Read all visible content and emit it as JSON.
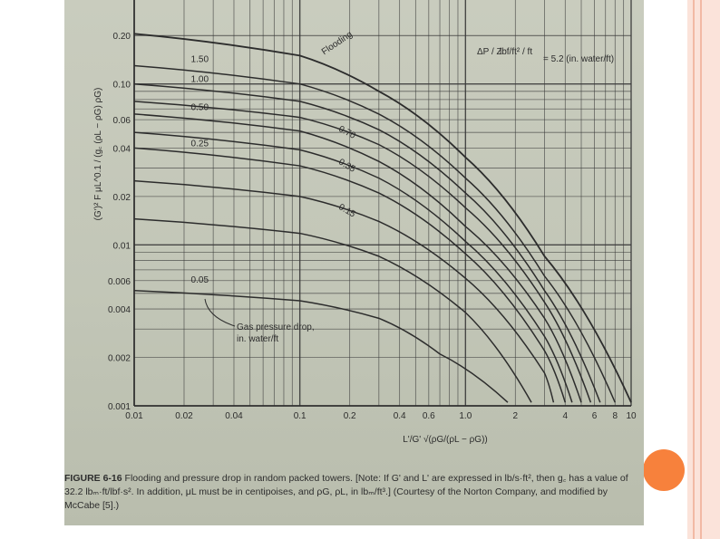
{
  "colors": {
    "paper": "#c4c8b9",
    "ink": "#2c2c2c",
    "accent_dot": "#f7813c",
    "stripe": "#fbe3da"
  },
  "caption": {
    "figure_label": "FIGURE 6-16",
    "text": "Flooding and pressure drop in random packed towers. [Note: If G' and L' are expressed in lb/s·ft², then g꜀ has a value of 32.2 lbₘ·ft/lbf·s². In addition, μL must be in centipoises, and ρG, ρL, in lbₘ/ft³.] (Courtesy of the Norton Company, and modified by McCabe [5].)"
  },
  "annotations": {
    "flooding": "Flooding",
    "pressure_eq_left": "ΔP / Z",
    "pressure_eq_mid": "lbf/ft² / ft",
    "pressure_eq_right": "= 5.2 (in. water/ft)",
    "gas_pressure_drop_line1": "Gas pressure drop,",
    "gas_pressure_drop_line2": "in. water/ft"
  },
  "chart_data": {
    "type": "line",
    "x_scale": "log",
    "y_scale": "log",
    "xlim": [
      0.01,
      10
    ],
    "ylim": [
      0.001,
      0.25
    ],
    "xlabel": "L'/G' √(ρG/(ρL − ρG))",
    "ylabel": "(G')² F μL^0.1 / (g꜀ (ρL − ρG) ρG)",
    "x_ticks": [
      {
        "v": 0.01,
        "label": "0.01"
      },
      {
        "v": 0.02,
        "label": "0.02"
      },
      {
        "v": 0.04,
        "label": "0.04"
      },
      {
        "v": 0.1,
        "label": "0.1"
      },
      {
        "v": 0.2,
        "label": "0.2"
      },
      {
        "v": 0.4,
        "label": "0.4"
      },
      {
        "v": 0.6,
        "label": "0.6"
      },
      {
        "v": 1.0,
        "label": "1.0"
      },
      {
        "v": 2,
        "label": "2"
      },
      {
        "v": 4,
        "label": "4"
      },
      {
        "v": 6,
        "label": "6"
      },
      {
        "v": 8,
        "label": "8"
      },
      {
        "v": 10,
        "label": "10"
      }
    ],
    "y_ticks": [
      {
        "v": 0.2,
        "label": "0.20"
      },
      {
        "v": 0.1,
        "label": "0.10"
      },
      {
        "v": 0.06,
        "label": "0.06"
      },
      {
        "v": 0.04,
        "label": "0.04"
      },
      {
        "v": 0.02,
        "label": "0.02"
      },
      {
        "v": 0.01,
        "label": "0.01"
      },
      {
        "v": 0.006,
        "label": "0.006"
      },
      {
        "v": 0.004,
        "label": "0.004"
      },
      {
        "v": 0.002,
        "label": "0.002"
      },
      {
        "v": 0.001,
        "label": "0.001"
      }
    ],
    "grid": true,
    "series": [
      {
        "name": "Flooding",
        "x": [
          0.01,
          0.1,
          0.3,
          1.0,
          3.0,
          10
        ],
        "y": [
          0.205,
          0.15,
          0.09,
          0.035,
          0.0085,
          0.00105
        ]
      },
      {
        "name": "1.50",
        "x": [
          0.01,
          0.1,
          0.3,
          1.0,
          3.0,
          8
        ],
        "y": [
          0.13,
          0.1,
          0.065,
          0.026,
          0.0064,
          0.00105
        ]
      },
      {
        "name": "1.00",
        "x": [
          0.01,
          0.1,
          0.3,
          1.0,
          3.0,
          6.5
        ],
        "y": [
          0.1,
          0.078,
          0.052,
          0.021,
          0.0052,
          0.00105
        ]
      },
      {
        "name": "0.50",
        "x": [
          0.01,
          0.1,
          0.3,
          1.0,
          3.0,
          5
        ],
        "y": [
          0.065,
          0.051,
          0.033,
          0.013,
          0.0035,
          0.00105
        ]
      },
      {
        "name": "0.70",
        "x": [
          0.01,
          0.1,
          0.3,
          1.0,
          3.0,
          5.7
        ],
        "y": [
          0.078,
          0.062,
          0.042,
          0.017,
          0.0044,
          0.00105
        ]
      },
      {
        "name": "0.35",
        "x": [
          0.01,
          0.1,
          0.3,
          1.0,
          3.0,
          4.4
        ],
        "y": [
          0.05,
          0.039,
          0.026,
          0.0105,
          0.0027,
          0.00105
        ]
      },
      {
        "name": "0.25",
        "x": [
          0.01,
          0.1,
          0.3,
          1.0,
          3.0,
          4
        ],
        "y": [
          0.04,
          0.031,
          0.021,
          0.0088,
          0.0022,
          0.00105
        ]
      },
      {
        "name": "0.15",
        "x": [
          0.01,
          0.1,
          0.3,
          1.0,
          3.0,
          3.4
        ],
        "y": [
          0.025,
          0.02,
          0.014,
          0.0062,
          0.0016,
          0.00105
        ]
      },
      {
        "name": "",
        "x": [
          0.01,
          0.1,
          0.3,
          1.0,
          2.5
        ],
        "y": [
          0.0145,
          0.0118,
          0.0085,
          0.0038,
          0.00105
        ]
      },
      {
        "name": "0.05",
        "x": [
          0.01,
          0.1,
          0.3,
          0.7,
          1.8
        ],
        "y": [
          0.0052,
          0.0045,
          0.0035,
          0.0021,
          0.00105
        ]
      }
    ]
  }
}
